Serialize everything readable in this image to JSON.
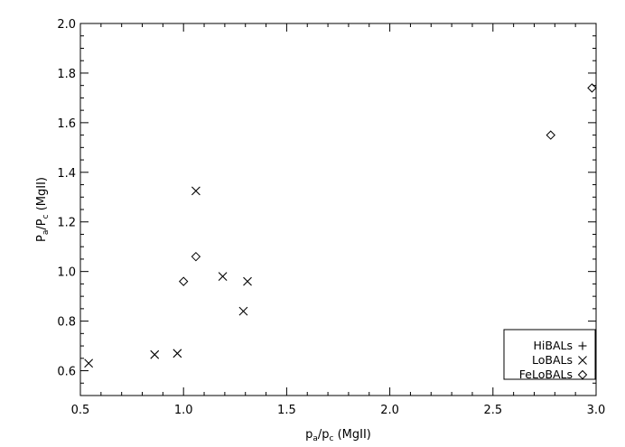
{
  "chart_data": {
    "type": "scatter",
    "title": "",
    "xlabel": "p_a/p_c (MgII)",
    "ylabel": "P_a/P_c (MgII)",
    "xlim": [
      0.5,
      3.0
    ],
    "ylim": [
      0.5,
      2.0
    ],
    "x_ticks": [
      "0.5",
      "1.0",
      "1.5",
      "2.0",
      "2.5",
      "3.0"
    ],
    "y_ticks": [
      "0.6",
      "0.8",
      "1.0",
      "1.2",
      "1.4",
      "1.6",
      "1.8",
      "2.0"
    ],
    "grid": false,
    "legend_position": "bottom-right",
    "series": [
      {
        "name": "HiBALs",
        "marker": "plus",
        "points": []
      },
      {
        "name": "LoBALs",
        "marker": "cross",
        "points": [
          {
            "x": 0.54,
            "y": 0.63
          },
          {
            "x": 0.86,
            "y": 0.665
          },
          {
            "x": 0.97,
            "y": 0.67
          },
          {
            "x": 1.06,
            "y": 1.325
          },
          {
            "x": 1.19,
            "y": 0.98
          },
          {
            "x": 1.29,
            "y": 0.84
          },
          {
            "x": 1.31,
            "y": 0.96
          }
        ]
      },
      {
        "name": "FeLoBALs",
        "marker": "diamond",
        "points": [
          {
            "x": 1.0,
            "y": 0.96
          },
          {
            "x": 1.06,
            "y": 1.06
          },
          {
            "x": 2.78,
            "y": 1.55
          },
          {
            "x": 2.98,
            "y": 1.74
          }
        ]
      }
    ]
  }
}
